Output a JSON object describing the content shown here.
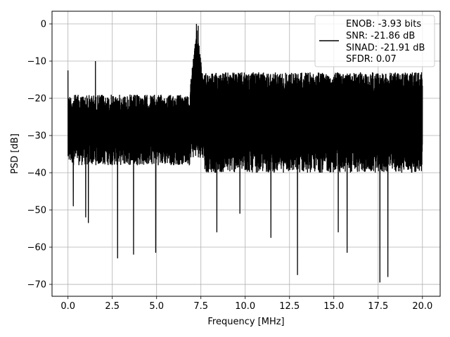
{
  "chart_data": {
    "type": "line",
    "title": "",
    "xlabel": "Frequency [MHz]",
    "ylabel": "PSD [dB]",
    "xlim": [
      -0.9,
      21.0
    ],
    "ylim": [
      -73.2,
      3.4
    ],
    "x_ticks": [
      0.0,
      2.5,
      5.0,
      7.5,
      10.0,
      12.5,
      15.0,
      17.5,
      20.0
    ],
    "x_tick_labels": [
      "0.0",
      "2.5",
      "5.0",
      "7.5",
      "10.0",
      "12.5",
      "15.0",
      "17.5",
      "20.0"
    ],
    "y_ticks": [
      0,
      -10,
      -20,
      -30,
      -40,
      -50,
      -60,
      -70
    ],
    "y_tick_labels": [
      "0",
      "−10",
      "−20",
      "−30",
      "−40",
      "−50",
      "−60",
      "−70"
    ],
    "grid": true,
    "legend_position": "top-right",
    "line_color": "#000000",
    "series": [
      {
        "name": "ENOB: -3.93 bits\nSNR: -21.86 dB\nSINAD: -21.91 dB\nSFDR: 0.07",
        "legend_lines": [
          "ENOB: -3.93 bits",
          "SNR: -21.86 dB",
          "SINAD: -21.91 dB",
          "SFDR: 0.07"
        ],
        "x_range": [
          0.0,
          20.0
        ],
        "noise_floor_band_db": [
          -38,
          -19
        ],
        "band_7MHz_floor_db": [
          -36,
          -14
        ],
        "noise_floor_band_above_7_5MHz_db": [
          -40,
          -13
        ],
        "peaks": [
          {
            "x": 0.0,
            "y": -5.5
          },
          {
            "x": 1.55,
            "y": -10.0
          },
          {
            "x": 7.25,
            "y": 0.0
          },
          {
            "x": 7.35,
            "y": -0.5
          }
        ],
        "dips": [
          {
            "x": 0.3,
            "y": -49.0
          },
          {
            "x": 1.0,
            "y": -52.0
          },
          {
            "x": 1.15,
            "y": -53.5
          },
          {
            "x": 2.8,
            "y": -63.0
          },
          {
            "x": 3.7,
            "y": -62.0
          },
          {
            "x": 4.95,
            "y": -61.5
          },
          {
            "x": 8.4,
            "y": -56.0
          },
          {
            "x": 9.7,
            "y": -51.0
          },
          {
            "x": 11.45,
            "y": -57.5
          },
          {
            "x": 12.95,
            "y": -67.5
          },
          {
            "x": 15.25,
            "y": -56.0
          },
          {
            "x": 15.75,
            "y": -61.5
          },
          {
            "x": 17.6,
            "y": -69.5
          },
          {
            "x": 18.05,
            "y": -68.0
          }
        ]
      }
    ]
  }
}
